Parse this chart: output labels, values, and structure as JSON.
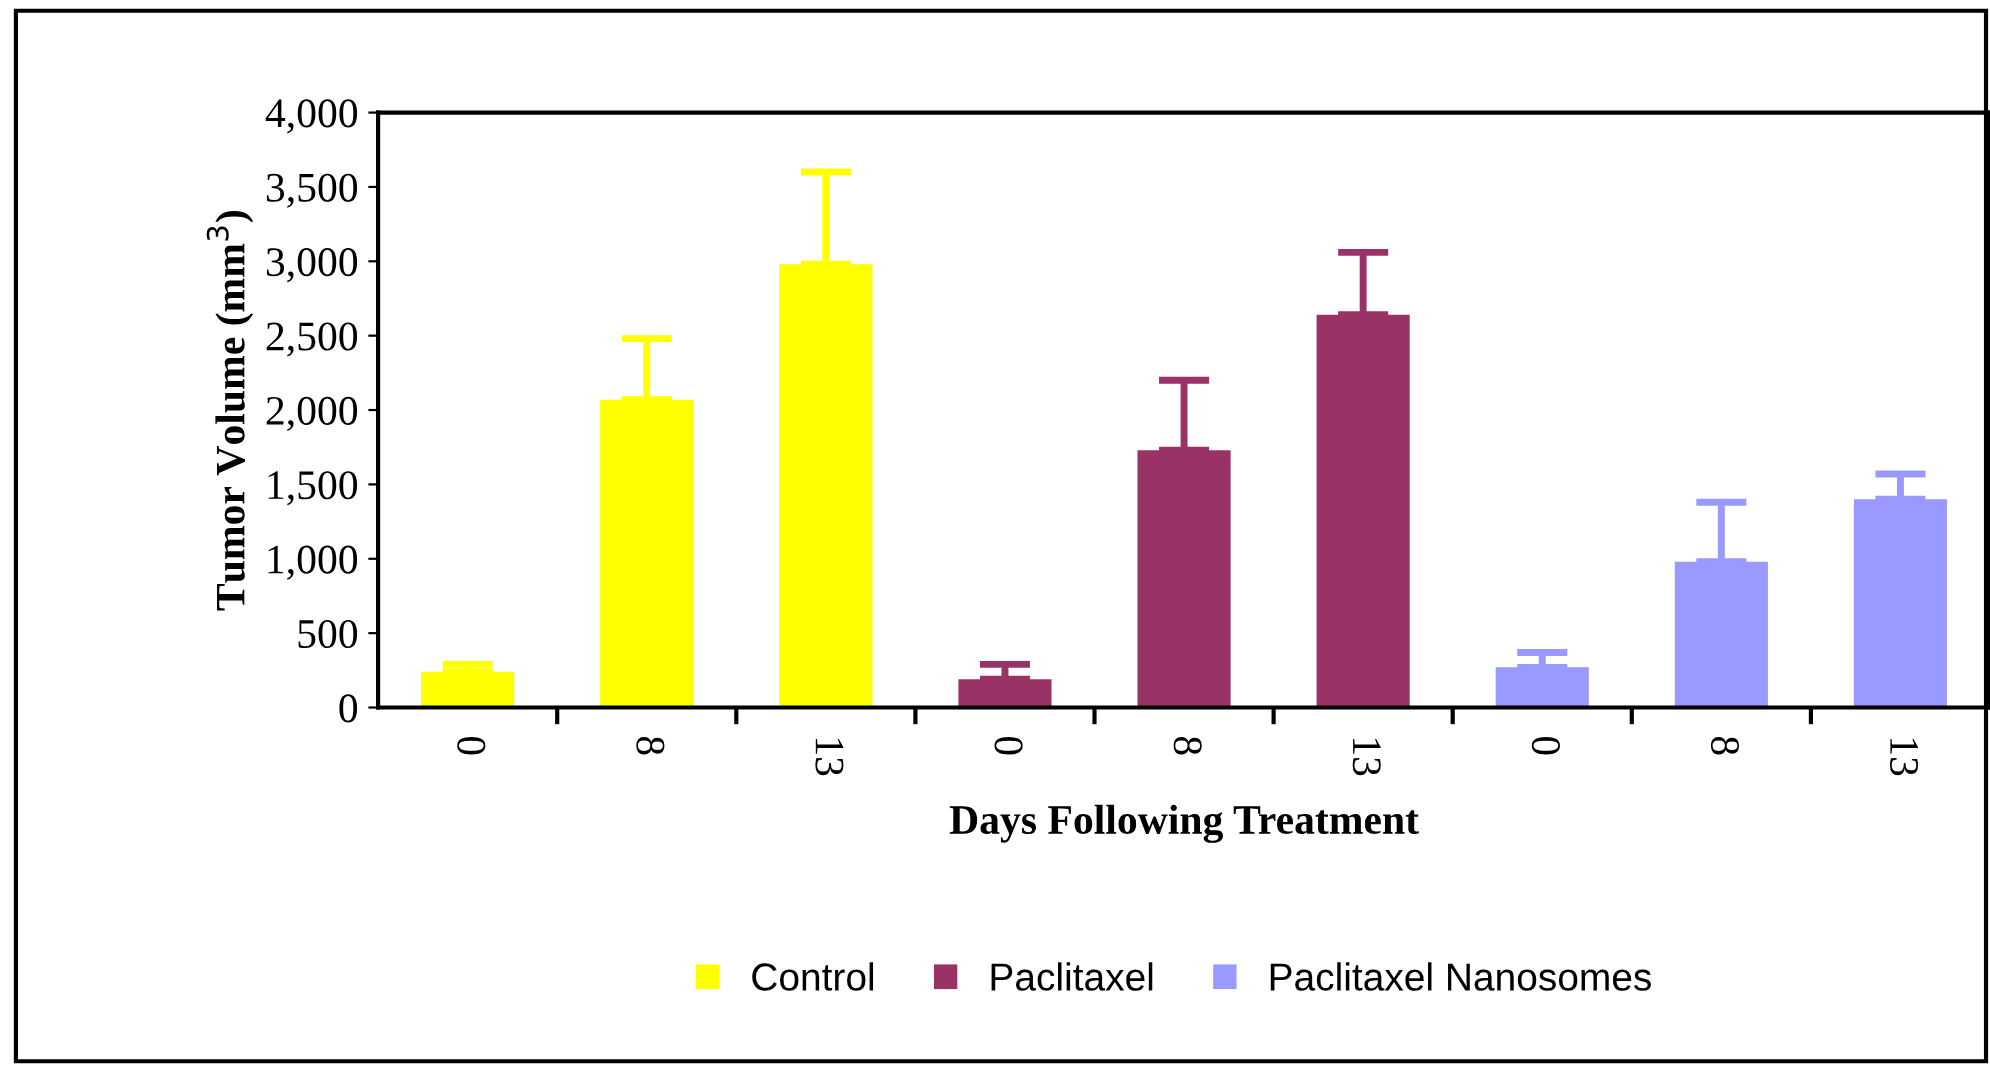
{
  "chart_data": {
    "type": "bar",
    "xlabel": "Days Following Treatment",
    "ylabel": "Tumor Volume (mm$^{3}$)",
    "categories": [
      "0",
      "8",
      "13",
      "0",
      "8",
      "13",
      "0",
      "8",
      "13"
    ],
    "series": [
      {
        "name": "Control",
        "color": "#ffff00",
        "values": [
          240,
          2070,
          2980,
          null,
          null,
          null,
          null,
          null,
          null
        ],
        "errors": [
          [
            240,
            290
          ],
          [
            2070,
            2480
          ],
          [
            2980,
            3600
          ],
          null,
          null,
          null,
          null,
          null,
          null
        ]
      },
      {
        "name": "Paclitaxel",
        "color": "#993366",
        "values": [
          null,
          null,
          null,
          190,
          1730,
          2640,
          null,
          null,
          null
        ],
        "errors": [
          null,
          null,
          null,
          [
            190,
            290
          ],
          [
            1730,
            2200
          ],
          [
            2640,
            3060
          ],
          null,
          null,
          null
        ]
      },
      {
        "name": "Paclitaxel Nanosomes",
        "color": "#9999ff",
        "values": [
          null,
          null,
          null,
          null,
          null,
          null,
          270,
          980,
          1400
        ],
        "errors": [
          null,
          null,
          null,
          null,
          null,
          null,
          [
            270,
            370
          ],
          [
            980,
            1380
          ],
          [
            1400,
            1570
          ]
        ]
      }
    ],
    "ylim": [
      0,
      4000
    ],
    "yticks": [
      {
        "value": 0,
        "label": "0"
      },
      {
        "value": 500,
        "label": "500"
      },
      {
        "value": 1000,
        "label": "1,000"
      },
      {
        "value": 1500,
        "label": "1,500"
      },
      {
        "value": 2000,
        "label": "2,000"
      },
      {
        "value": 2500,
        "label": "2,500"
      },
      {
        "value": 3000,
        "label": "3,000"
      },
      {
        "value": 3500,
        "label": "3,500"
      },
      {
        "value": 4000,
        "label": "4,000"
      }
    ],
    "grid": false,
    "legend": "bottom"
  }
}
